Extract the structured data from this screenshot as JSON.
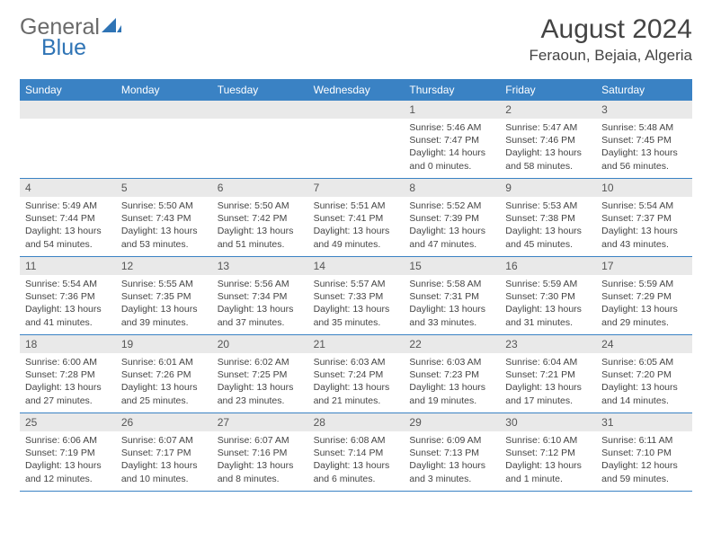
{
  "branding": {
    "general": "General",
    "blue": "Blue",
    "logo_fill": "#2f74b5"
  },
  "header": {
    "month_title": "August 2024",
    "location": "Feraoun, Bejaia, Algeria"
  },
  "colors": {
    "header_bar": "#3a82c4",
    "header_text": "#ffffff",
    "daynum_bg": "#e9e9e9",
    "row_border": "#3a82c4",
    "body_text": "#444444"
  },
  "day_names": [
    "Sunday",
    "Monday",
    "Tuesday",
    "Wednesday",
    "Thursday",
    "Friday",
    "Saturday"
  ],
  "weeks": [
    [
      {
        "n": "",
        "sr": "",
        "ss": "",
        "dl": ""
      },
      {
        "n": "",
        "sr": "",
        "ss": "",
        "dl": ""
      },
      {
        "n": "",
        "sr": "",
        "ss": "",
        "dl": ""
      },
      {
        "n": "",
        "sr": "",
        "ss": "",
        "dl": ""
      },
      {
        "n": "1",
        "sr": "5:46 AM",
        "ss": "7:47 PM",
        "dl": "14 hours and 0 minutes."
      },
      {
        "n": "2",
        "sr": "5:47 AM",
        "ss": "7:46 PM",
        "dl": "13 hours and 58 minutes."
      },
      {
        "n": "3",
        "sr": "5:48 AM",
        "ss": "7:45 PM",
        "dl": "13 hours and 56 minutes."
      }
    ],
    [
      {
        "n": "4",
        "sr": "5:49 AM",
        "ss": "7:44 PM",
        "dl": "13 hours and 54 minutes."
      },
      {
        "n": "5",
        "sr": "5:50 AM",
        "ss": "7:43 PM",
        "dl": "13 hours and 53 minutes."
      },
      {
        "n": "6",
        "sr": "5:50 AM",
        "ss": "7:42 PM",
        "dl": "13 hours and 51 minutes."
      },
      {
        "n": "7",
        "sr": "5:51 AM",
        "ss": "7:41 PM",
        "dl": "13 hours and 49 minutes."
      },
      {
        "n": "8",
        "sr": "5:52 AM",
        "ss": "7:39 PM",
        "dl": "13 hours and 47 minutes."
      },
      {
        "n": "9",
        "sr": "5:53 AM",
        "ss": "7:38 PM",
        "dl": "13 hours and 45 minutes."
      },
      {
        "n": "10",
        "sr": "5:54 AM",
        "ss": "7:37 PM",
        "dl": "13 hours and 43 minutes."
      }
    ],
    [
      {
        "n": "11",
        "sr": "5:54 AM",
        "ss": "7:36 PM",
        "dl": "13 hours and 41 minutes."
      },
      {
        "n": "12",
        "sr": "5:55 AM",
        "ss": "7:35 PM",
        "dl": "13 hours and 39 minutes."
      },
      {
        "n": "13",
        "sr": "5:56 AM",
        "ss": "7:34 PM",
        "dl": "13 hours and 37 minutes."
      },
      {
        "n": "14",
        "sr": "5:57 AM",
        "ss": "7:33 PM",
        "dl": "13 hours and 35 minutes."
      },
      {
        "n": "15",
        "sr": "5:58 AM",
        "ss": "7:31 PM",
        "dl": "13 hours and 33 minutes."
      },
      {
        "n": "16",
        "sr": "5:59 AM",
        "ss": "7:30 PM",
        "dl": "13 hours and 31 minutes."
      },
      {
        "n": "17",
        "sr": "5:59 AM",
        "ss": "7:29 PM",
        "dl": "13 hours and 29 minutes."
      }
    ],
    [
      {
        "n": "18",
        "sr": "6:00 AM",
        "ss": "7:28 PM",
        "dl": "13 hours and 27 minutes."
      },
      {
        "n": "19",
        "sr": "6:01 AM",
        "ss": "7:26 PM",
        "dl": "13 hours and 25 minutes."
      },
      {
        "n": "20",
        "sr": "6:02 AM",
        "ss": "7:25 PM",
        "dl": "13 hours and 23 minutes."
      },
      {
        "n": "21",
        "sr": "6:03 AM",
        "ss": "7:24 PM",
        "dl": "13 hours and 21 minutes."
      },
      {
        "n": "22",
        "sr": "6:03 AM",
        "ss": "7:23 PM",
        "dl": "13 hours and 19 minutes."
      },
      {
        "n": "23",
        "sr": "6:04 AM",
        "ss": "7:21 PM",
        "dl": "13 hours and 17 minutes."
      },
      {
        "n": "24",
        "sr": "6:05 AM",
        "ss": "7:20 PM",
        "dl": "13 hours and 14 minutes."
      }
    ],
    [
      {
        "n": "25",
        "sr": "6:06 AM",
        "ss": "7:19 PM",
        "dl": "13 hours and 12 minutes."
      },
      {
        "n": "26",
        "sr": "6:07 AM",
        "ss": "7:17 PM",
        "dl": "13 hours and 10 minutes."
      },
      {
        "n": "27",
        "sr": "6:07 AM",
        "ss": "7:16 PM",
        "dl": "13 hours and 8 minutes."
      },
      {
        "n": "28",
        "sr": "6:08 AM",
        "ss": "7:14 PM",
        "dl": "13 hours and 6 minutes."
      },
      {
        "n": "29",
        "sr": "6:09 AM",
        "ss": "7:13 PM",
        "dl": "13 hours and 3 minutes."
      },
      {
        "n": "30",
        "sr": "6:10 AM",
        "ss": "7:12 PM",
        "dl": "13 hours and 1 minute."
      },
      {
        "n": "31",
        "sr": "6:11 AM",
        "ss": "7:10 PM",
        "dl": "12 hours and 59 minutes."
      }
    ]
  ],
  "labels": {
    "sunrise_prefix": "Sunrise: ",
    "sunset_prefix": "Sunset: ",
    "daylight_prefix": "Daylight: "
  }
}
